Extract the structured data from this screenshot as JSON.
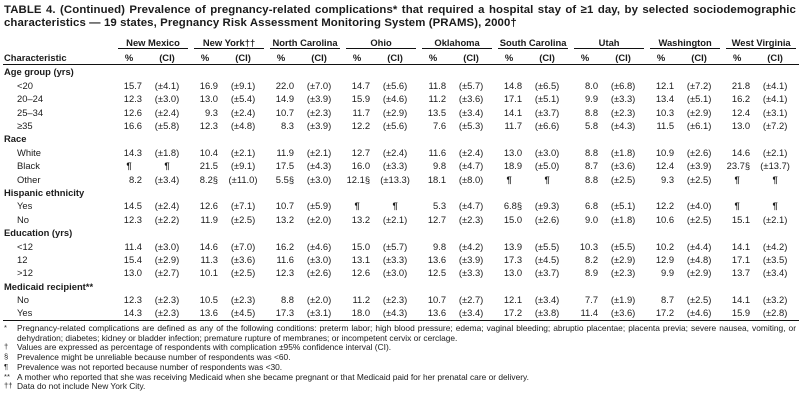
{
  "title": "TABLE 4. (Continued) Prevalence of pregnancy-related complications* that required a hospital stay of ≥1 day, by selected sociodemographic characteristics — 19 states, Pregnancy Risk Assessment Monitoring System (PRAMS), 2000†",
  "header": {
    "characteristic_label": "Characteristic",
    "pct_label": "%",
    "ci_label": "(CI)",
    "states": [
      "New Mexico",
      "New York††",
      "North Carolina",
      "Ohio",
      "Oklahoma",
      "South Carolina",
      "Utah",
      "Washington",
      "West Virginia"
    ]
  },
  "table": {
    "not_reported_symbol": "¶",
    "sections": [
      {
        "label": "Age group (yrs)",
        "rows": [
          {
            "label": "<20",
            "cells": [
              [
                "15.7",
                "(±4.1)"
              ],
              [
                "16.9",
                "(±9.1)"
              ],
              [
                "22.0",
                "(±7.0)"
              ],
              [
                "14.7",
                "(±5.6)"
              ],
              [
                "11.8",
                "(±5.7)"
              ],
              [
                "14.8",
                "(±6.5)"
              ],
              [
                "8.0",
                "(±6.8)"
              ],
              [
                "12.1",
                "(±7.2)"
              ],
              [
                "21.8",
                "(±4.1)"
              ]
            ]
          },
          {
            "label": "20–24",
            "cells": [
              [
                "12.3",
                "(±3.0)"
              ],
              [
                "13.0",
                "(±5.4)"
              ],
              [
                "14.9",
                "(±3.9)"
              ],
              [
                "15.9",
                "(±4.6)"
              ],
              [
                "11.2",
                "(±3.6)"
              ],
              [
                "17.1",
                "(±5.1)"
              ],
              [
                "9.9",
                "(±3.3)"
              ],
              [
                "13.4",
                "(±5.1)"
              ],
              [
                "16.2",
                "(±4.1)"
              ]
            ]
          },
          {
            "label": "25–34",
            "cells": [
              [
                "12.6",
                "(±2.4)"
              ],
              [
                "9.3",
                "(±2.4)"
              ],
              [
                "10.7",
                "(±2.3)"
              ],
              [
                "11.7",
                "(±2.9)"
              ],
              [
                "13.5",
                "(±3.4)"
              ],
              [
                "14.1",
                "(±3.7)"
              ],
              [
                "8.8",
                "(±2.3)"
              ],
              [
                "10.3",
                "(±2.9)"
              ],
              [
                "12.4",
                "(±3.1)"
              ]
            ]
          },
          {
            "label": "≥35",
            "cells": [
              [
                "16.6",
                "(±5.8)"
              ],
              [
                "12.3",
                "(±4.8)"
              ],
              [
                "8.3",
                "(±3.9)"
              ],
              [
                "12.2",
                "(±5.6)"
              ],
              [
                "7.6",
                "(±5.3)"
              ],
              [
                "11.7",
                "(±6.6)"
              ],
              [
                "5.8",
                "(±4.3)"
              ],
              [
                "11.5",
                "(±6.1)"
              ],
              [
                "13.0",
                "(±7.2)"
              ]
            ]
          }
        ]
      },
      {
        "label": "Race",
        "rows": [
          {
            "label": "White",
            "cells": [
              [
                "14.3",
                "(±1.8)"
              ],
              [
                "10.4",
                "(±2.1)"
              ],
              [
                "11.9",
                "(±2.1)"
              ],
              [
                "12.7",
                "(±2.4)"
              ],
              [
                "11.6",
                "(±2.4)"
              ],
              [
                "13.0",
                "(±3.0)"
              ],
              [
                "8.8",
                "(±1.8)"
              ],
              [
                "10.9",
                "(±2.6)"
              ],
              [
                "14.6",
                "(±2.1)"
              ]
            ]
          },
          {
            "label": "Black",
            "cells": [
              [
                "¶",
                "¶"
              ],
              [
                "21.5",
                "(±9.1)"
              ],
              [
                "17.5",
                "(±4.3)"
              ],
              [
                "16.0",
                "(±3.3)"
              ],
              [
                "9.8",
                "(±4.7)"
              ],
              [
                "18.9",
                "(±5.0)"
              ],
              [
                "8.7",
                "(±3.6)"
              ],
              [
                "12.4",
                "(±3.9)"
              ],
              [
                "23.7§",
                "(±13.7)"
              ]
            ]
          },
          {
            "label": "Other",
            "cells": [
              [
                "8.2",
                "(±3.4)"
              ],
              [
                "8.2§",
                "(±11.0)"
              ],
              [
                "5.5§",
                "(±3.0)"
              ],
              [
                "12.1§",
                "(±13.3)"
              ],
              [
                "18.1",
                "(±8.0)"
              ],
              [
                "¶",
                "¶"
              ],
              [
                "8.8",
                "(±2.5)"
              ],
              [
                "9.3",
                "(±2.5)"
              ],
              [
                "¶",
                "¶"
              ]
            ]
          }
        ]
      },
      {
        "label": "Hispanic ethnicity",
        "rows": [
          {
            "label": "Yes",
            "cells": [
              [
                "14.5",
                "(±2.4)"
              ],
              [
                "12.6",
                "(±7.1)"
              ],
              [
                "10.7",
                "(±5.9)"
              ],
              [
                "¶",
                "¶"
              ],
              [
                "5.3",
                "(±4.7)"
              ],
              [
                "6.8§",
                "(±9.3)"
              ],
              [
                "6.8",
                "(±5.1)"
              ],
              [
                "12.2",
                "(±4.0)"
              ],
              [
                "¶",
                "¶"
              ]
            ]
          },
          {
            "label": "No",
            "cells": [
              [
                "12.3",
                "(±2.2)"
              ],
              [
                "11.9",
                "(±2.5)"
              ],
              [
                "13.2",
                "(±2.0)"
              ],
              [
                "13.2",
                "(±2.1)"
              ],
              [
                "12.7",
                "(±2.3)"
              ],
              [
                "15.0",
                "(±2.6)"
              ],
              [
                "9.0",
                "(±1.8)"
              ],
              [
                "10.6",
                "(±2.5)"
              ],
              [
                "15.1",
                "(±2.1)"
              ]
            ]
          }
        ]
      },
      {
        "label": "Education (yrs)",
        "rows": [
          {
            "label": "<12",
            "cells": [
              [
                "11.4",
                "(±3.0)"
              ],
              [
                "14.6",
                "(±7.0)"
              ],
              [
                "16.2",
                "(±4.6)"
              ],
              [
                "15.0",
                "(±5.7)"
              ],
              [
                "9.8",
                "(±4.2)"
              ],
              [
                "13.9",
                "(±5.5)"
              ],
              [
                "10.3",
                "(±5.5)"
              ],
              [
                "10.2",
                "(±4.4)"
              ],
              [
                "14.1",
                "(±4.2)"
              ]
            ]
          },
          {
            "label": "12",
            "cells": [
              [
                "15.4",
                "(±2.9)"
              ],
              [
                "11.3",
                "(±3.6)"
              ],
              [
                "11.6",
                "(±3.0)"
              ],
              [
                "13.1",
                "(±3.3)"
              ],
              [
                "13.6",
                "(±3.9)"
              ],
              [
                "17.3",
                "(±4.5)"
              ],
              [
                "8.2",
                "(±2.9)"
              ],
              [
                "12.9",
                "(±4.8)"
              ],
              [
                "17.1",
                "(±3.5)"
              ]
            ]
          },
          {
            "label": ">12",
            "cells": [
              [
                "13.0",
                "(±2.7)"
              ],
              [
                "10.1",
                "(±2.5)"
              ],
              [
                "12.3",
                "(±2.6)"
              ],
              [
                "12.6",
                "(±3.0)"
              ],
              [
                "12.5",
                "(±3.3)"
              ],
              [
                "13.0",
                "(±3.7)"
              ],
              [
                "8.9",
                "(±2.3)"
              ],
              [
                "9.9",
                "(±2.9)"
              ],
              [
                "13.7",
                "(±3.4)"
              ]
            ]
          }
        ]
      },
      {
        "label": "Medicaid recipient**",
        "rows": [
          {
            "label": "No",
            "cells": [
              [
                "12.3",
                "(±2.3)"
              ],
              [
                "10.5",
                "(±2.3)"
              ],
              [
                "8.8",
                "(±2.0)"
              ],
              [
                "11.2",
                "(±2.3)"
              ],
              [
                "10.7",
                "(±2.7)"
              ],
              [
                "12.1",
                "(±3.4)"
              ],
              [
                "7.7",
                "(±1.9)"
              ],
              [
                "8.7",
                "(±2.5)"
              ],
              [
                "14.1",
                "(±3.2)"
              ]
            ]
          },
          {
            "label": "Yes",
            "cells": [
              [
                "14.3",
                "(±2.3)"
              ],
              [
                "13.6",
                "(±4.5)"
              ],
              [
                "17.3",
                "(±3.1)"
              ],
              [
                "18.0",
                "(±4.3)"
              ],
              [
                "13.6",
                "(±3.4)"
              ],
              [
                "17.2",
                "(±3.8)"
              ],
              [
                "11.4",
                "(±3.6)"
              ],
              [
                "17.2",
                "(±4.6)"
              ],
              [
                "15.9",
                "(±2.8)"
              ]
            ]
          }
        ]
      }
    ]
  },
  "footnotes": [
    {
      "marker": "*",
      "text": "Pregnancy-related complications are defined as any of the following conditions: preterm labor; high blood pressure; edema; vaginal bleeding; abruptio placentae; placenta previa; severe nausea, vomiting, or dehydration; diabetes; kidney or bladder infection; premature rupture of membranes; or incompetent cervix or cerclage."
    },
    {
      "marker": "†",
      "text": "Values are expressed as percentage of respondents with complication ±95% confidence interval (CI)."
    },
    {
      "marker": "§",
      "text": "Prevalence might be unreliable because number of respondents was <60."
    },
    {
      "marker": "¶",
      "text": "Prevalence was not reported because number of respondents was <30."
    },
    {
      "marker": "**",
      "text": "A mother who reported that she was receiving Medicaid when she became pregnant or that Medicaid paid for her prenatal care or delivery."
    },
    {
      "marker": "††",
      "text": "Data do not include New York City."
    }
  ]
}
